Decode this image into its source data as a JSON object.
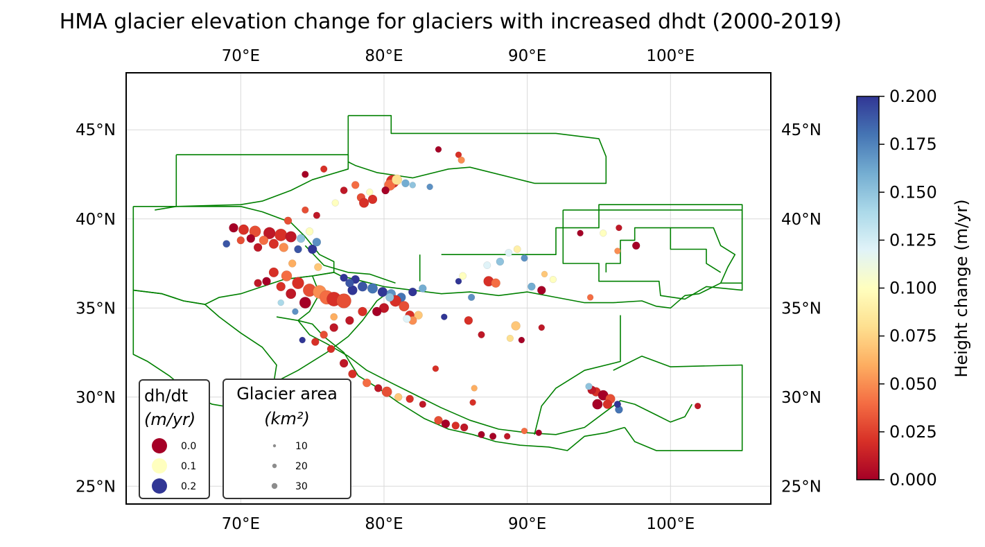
{
  "title": "HMA glacier elevation change for glaciers with increased dhdt (2000-2019)",
  "map": {
    "lon_range": [
      62,
      107
    ],
    "lat_range": [
      24,
      48.2
    ],
    "lon_ticks": [
      {
        "value": 70,
        "label": "70°E"
      },
      {
        "value": 80,
        "label": "80°E"
      },
      {
        "value": 90,
        "label": "90°E"
      },
      {
        "value": 100,
        "label": "100°E"
      }
    ],
    "lat_ticks": [
      {
        "value": 25,
        "label": "25°N"
      },
      {
        "value": 30,
        "label": "30°N"
      },
      {
        "value": 35,
        "label": "35°N"
      },
      {
        "value": 40,
        "label": "40°N"
      },
      {
        "value": 45,
        "label": "45°N"
      }
    ],
    "gridlines": true,
    "region_color": "#008000"
  },
  "colorbar": {
    "label": "Height change (m/yr)",
    "range": [
      0.0,
      0.2
    ],
    "ticks": [
      "0.000",
      "0.025",
      "0.050",
      "0.075",
      "0.100",
      "0.125",
      "0.150",
      "0.175",
      "0.200"
    ],
    "colormap": "RdYlBu",
    "stops": [
      "#a50026",
      "#d73027",
      "#f46d43",
      "#fdae61",
      "#fee090",
      "#ffffbf",
      "#e0f3f8",
      "#abd9e9",
      "#74add1",
      "#4575b4",
      "#313695"
    ]
  },
  "legend_dhdt": {
    "title_line1": "dh/dt",
    "title_line2": "(m/yr)",
    "items": [
      {
        "label": "0.0",
        "color": "#a50026"
      },
      {
        "label": "0.1",
        "color": "#ffffbf"
      },
      {
        "label": "0.2",
        "color": "#313695"
      }
    ]
  },
  "legend_area": {
    "title_line1": "Glacier area",
    "title_line2": "(km²)",
    "items": [
      {
        "label": "10",
        "color": "#8c8c8c"
      },
      {
        "label": "20",
        "color": "#8c8c8c"
      },
      {
        "label": "30",
        "color": "#8c8c8c"
      }
    ]
  }
}
